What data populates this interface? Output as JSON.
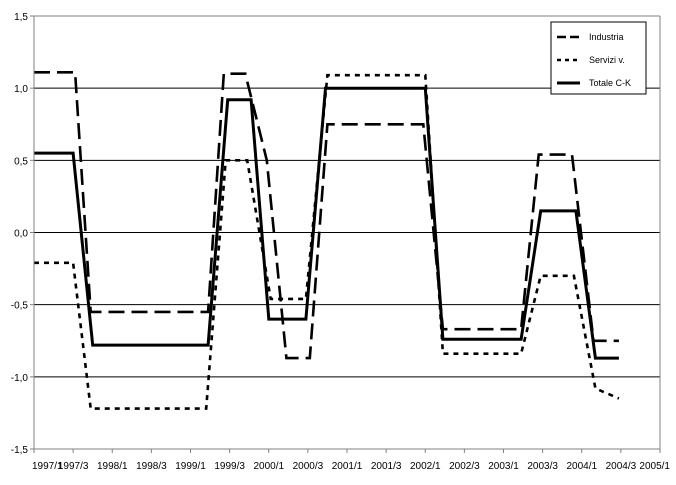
{
  "chart_data": {
    "type": "line",
    "title": "",
    "xlabel": "",
    "ylabel": "",
    "ylim": [
      -1.5,
      1.5
    ],
    "y_ticks": [
      "1,5",
      "1,0",
      "0,5",
      "0,0",
      "-0,5",
      "-1,0",
      "-1,5"
    ],
    "y_tick_values": [
      1.5,
      1.0,
      0.5,
      0.0,
      -0.5,
      -1.0,
      -1.5
    ],
    "x_ticks": [
      "1997/1",
      "1997/3",
      "1998/1",
      "1998/3",
      "1999/1",
      "1999/3",
      "2000/1",
      "2000/3",
      "2001/1",
      "2001/3",
      "2002/1",
      "2002/3",
      "2003/1",
      "2003/3",
      "2004/1",
      "2004/3",
      "2005/1"
    ],
    "grid": "horizontal",
    "legend_position": "top-right",
    "series": [
      {
        "name": "Industria",
        "style": "long-dash",
        "points": [
          [
            0,
            1.11
          ],
          [
            1.05,
            1.11
          ],
          [
            1.45,
            -0.55
          ],
          [
            4.45,
            -0.55
          ],
          [
            4.85,
            1.1
          ],
          [
            5.4,
            1.1
          ],
          [
            5.95,
            0.5
          ],
          [
            6.45,
            -0.87
          ],
          [
            7.05,
            -0.87
          ],
          [
            7.5,
            0.75
          ],
          [
            9.95,
            0.75
          ],
          [
            10.45,
            -0.67
          ],
          [
            12.45,
            -0.67
          ],
          [
            12.9,
            0.54
          ],
          [
            13.75,
            0.54
          ],
          [
            14.3,
            -0.75
          ],
          [
            14.95,
            -0.75
          ]
        ]
      },
      {
        "name": "Servizi v.",
        "style": "dotted",
        "points": [
          [
            0,
            -0.21
          ],
          [
            1.0,
            -0.21
          ],
          [
            1.45,
            -1.22
          ],
          [
            4.4,
            -1.22
          ],
          [
            4.9,
            0.5
          ],
          [
            5.45,
            0.5
          ],
          [
            6.05,
            -0.46
          ],
          [
            6.95,
            -0.46
          ],
          [
            7.5,
            1.09
          ],
          [
            10.0,
            1.09
          ],
          [
            10.45,
            -0.84
          ],
          [
            12.45,
            -0.84
          ],
          [
            12.95,
            -0.3
          ],
          [
            13.8,
            -0.3
          ],
          [
            14.35,
            -1.08
          ],
          [
            14.95,
            -1.15
          ]
        ]
      },
      {
        "name": "Totale C-K",
        "style": "solid",
        "points": [
          [
            0,
            0.55
          ],
          [
            1.0,
            0.55
          ],
          [
            1.5,
            -0.78
          ],
          [
            4.45,
            -0.78
          ],
          [
            4.95,
            0.92
          ],
          [
            5.55,
            0.92
          ],
          [
            6.0,
            -0.6
          ],
          [
            6.95,
            -0.6
          ],
          [
            7.45,
            1.0
          ],
          [
            10.0,
            1.0
          ],
          [
            10.45,
            -0.74
          ],
          [
            12.45,
            -0.74
          ],
          [
            12.95,
            0.15
          ],
          [
            13.85,
            0.15
          ],
          [
            14.35,
            -0.87
          ],
          [
            14.95,
            -0.87
          ]
        ]
      }
    ]
  }
}
